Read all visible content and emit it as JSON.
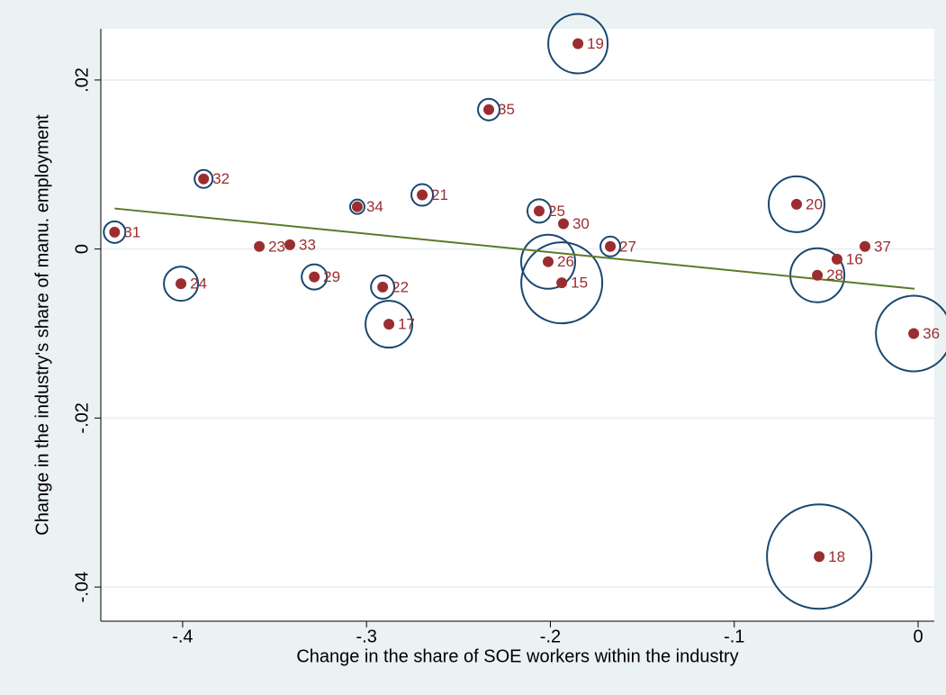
{
  "chart_data": {
    "type": "scatter",
    "x_label": "Change in the share of SOE workers within the industry",
    "y_label": "Change in the industry's share of manu. employment",
    "labels": [
      "31",
      "32",
      "23",
      "33",
      "24",
      "29",
      "34",
      "22",
      "17",
      "21",
      "35",
      "19",
      "25",
      "30",
      "26",
      "15",
      "27",
      "20",
      "37",
      "16",
      "28",
      "36",
      "18"
    ],
    "x": [
      -0.437,
      -0.3886,
      -0.3583,
      -0.3417,
      -0.4009,
      -0.3284,
      -0.305,
      -0.2912,
      -0.2878,
      -0.2697,
      -0.2335,
      -0.185,
      -0.2061,
      -0.1929,
      -0.2012,
      -0.1938,
      -0.1674,
      -0.0661,
      -0.0289,
      -0.0441,
      -0.0548,
      -0.0024,
      -0.0538
    ],
    "y": [
      0.002,
      0.0083,
      0.0003,
      0.0005,
      -0.0041,
      -0.0033,
      0.005,
      -0.0045,
      -0.0089,
      0.0064,
      0.0165,
      0.0243,
      0.0045,
      0.003,
      -0.0015,
      -0.004,
      0.0003,
      0.0053,
      0.0003,
      -0.0012,
      -0.0031,
      -0.01,
      -0.0364
    ],
    "sizes": [
      1.44,
      1.0,
      0.2,
      0.2,
      3.61,
      1.96,
      0.64,
      1.69,
      6.76,
      1.44,
      1.44,
      10.89,
      1.69,
      0.2,
      9.0,
      20.25,
      1.21,
      9.61,
      0.2,
      0.2,
      9.0,
      17.64,
      33.64
    ],
    "color": "#9b2d30",
    "ring_color": "#1a476f",
    "fit": {
      "x": [
        -0.437,
        -0.002
      ],
      "y": [
        0.0048,
        -0.0047
      ],
      "color": "#5a7a2a"
    },
    "xlim": [
      -0.4445,
      0.0088
    ],
    "ylim": [
      -0.04404,
      0.02606
    ],
    "xticks": [
      {
        "value": -0.4,
        "label": "-.4"
      },
      {
        "value": -0.3,
        "label": "-.3"
      },
      {
        "value": -0.2,
        "label": "-.2"
      },
      {
        "value": -0.1,
        "label": "-.1"
      },
      0
    ],
    "yticks": [
      {
        "value": -0.04,
        "label": "-.04"
      },
      {
        "value": -0.02,
        "label": "-.02"
      },
      0,
      {
        "value": 0.02,
        "label": ".02"
      }
    ],
    "grid": true
  }
}
